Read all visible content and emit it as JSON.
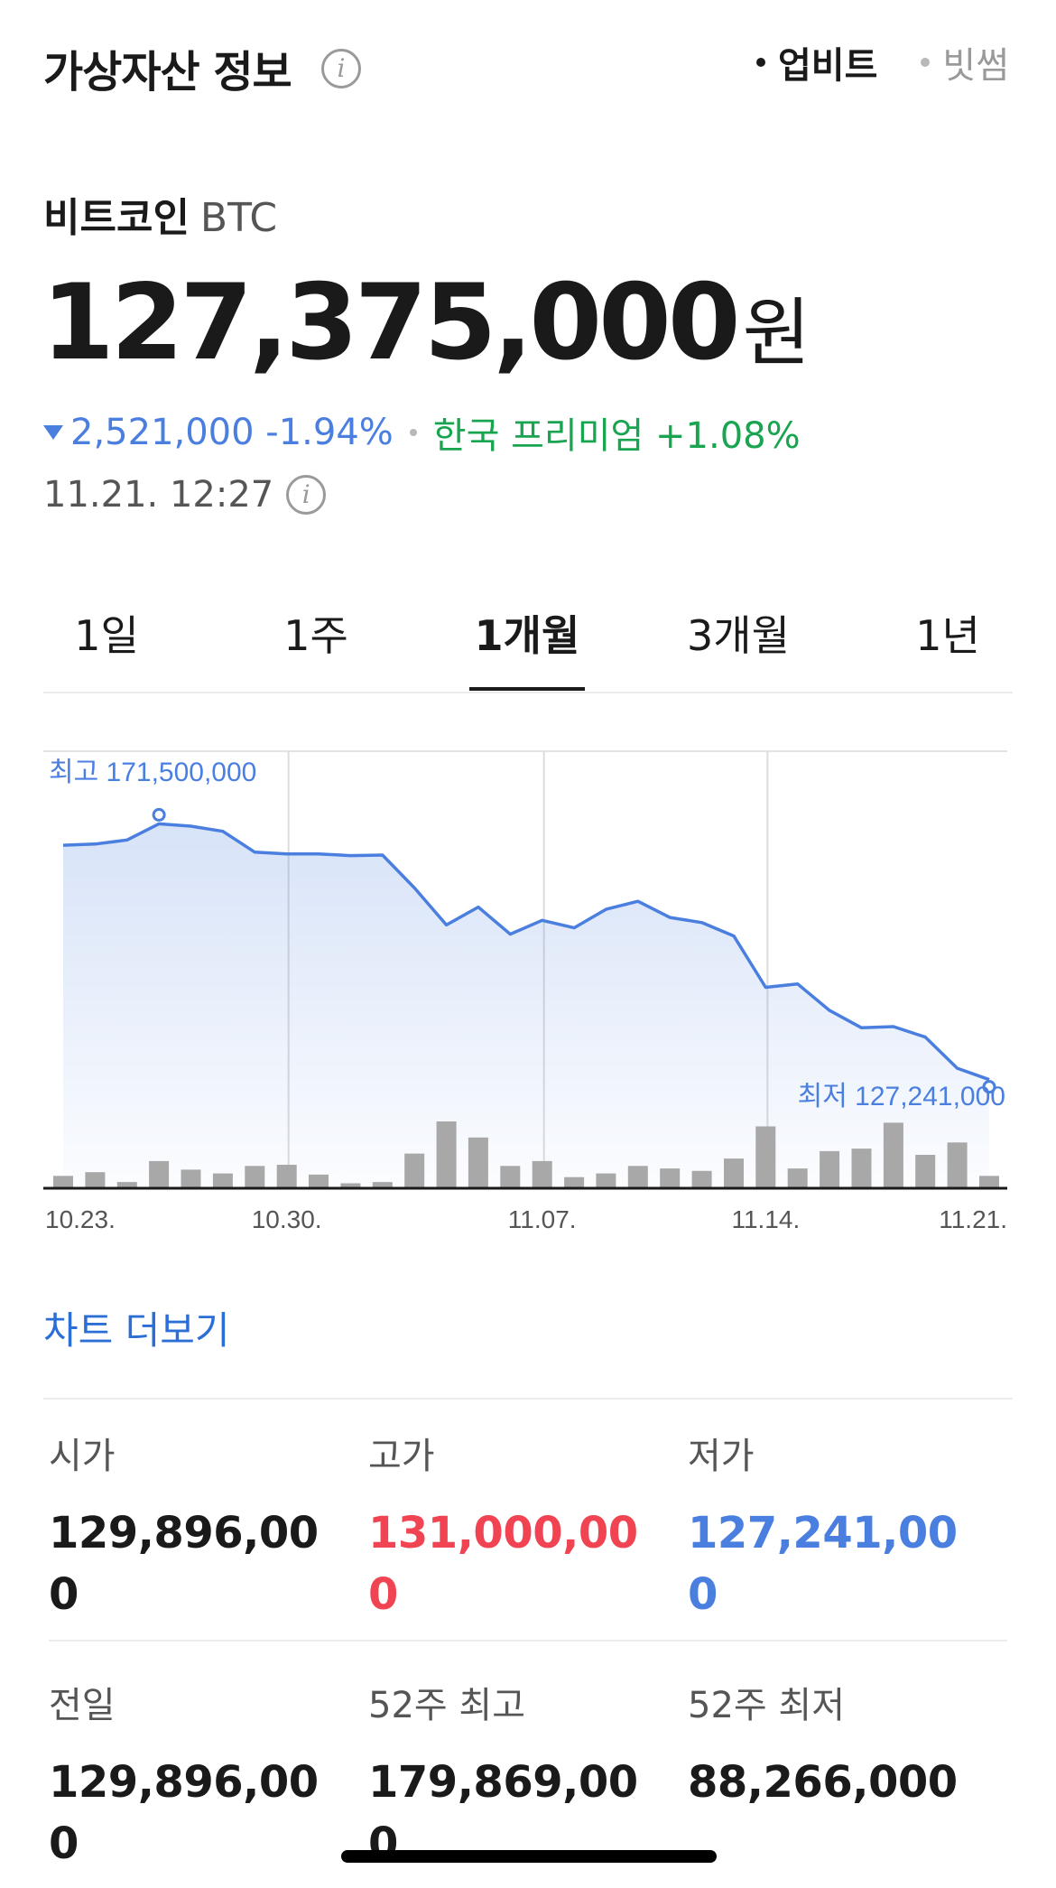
{
  "header": {
    "title": "가상자산 정보",
    "exchanges": [
      {
        "label": "업비트",
        "active": true
      },
      {
        "label": "빗썸",
        "active": false
      }
    ]
  },
  "coin": {
    "name": "비트코인",
    "symbol": "BTC",
    "price": "127,375,000",
    "unit": "원",
    "change": "2,521,000 -1.94%",
    "premium": "한국 프리미엄 +1.08%",
    "timestamp": "11.21. 12:27"
  },
  "periods": {
    "items": [
      "1일",
      "1주",
      "1개월",
      "3개월",
      "1년"
    ],
    "active_index": 2
  },
  "chart_data": {
    "type": "line",
    "x_labels": [
      "10.23.",
      "10.30.",
      "11.07.",
      "11.14.",
      "11.21."
    ],
    "series": [
      {
        "values": [
          167.8,
          168.0,
          168.7,
          171.5,
          171.1,
          170.2,
          166.6,
          166.3,
          166.3,
          166.0,
          166.1,
          160.4,
          154.0,
          157.1,
          152.4,
          154.8,
          153.5,
          156.7,
          158.1,
          155.3,
          154.4,
          152.1,
          143.2,
          143.8,
          139.2,
          136.2,
          136.4,
          134.6,
          129.2,
          127.241
        ]
      }
    ],
    "volume": [
      10,
      13,
      5,
      22,
      15,
      12,
      18,
      19,
      11,
      4,
      5,
      28,
      54,
      41,
      18,
      22,
      9,
      12,
      18,
      16,
      14,
      24,
      50,
      16,
      30,
      32,
      53,
      27,
      37,
      10
    ],
    "high_label": "최고 171,500,000",
    "low_label": "최저 127,241,000",
    "ylim": [
      125,
      175
    ],
    "grid": true,
    "line_color": "#4a7fe0",
    "bar_color": "#a8a8a8"
  },
  "chart_more": "차트 더보기",
  "stats": [
    {
      "label": "시가",
      "value": "129,896,000",
      "color": "default"
    },
    {
      "label": "고가",
      "value": "131,000,000",
      "color": "red"
    },
    {
      "label": "저가",
      "value": "127,241,000",
      "color": "blue"
    },
    {
      "label": "전일",
      "value": "129,896,000",
      "color": "default"
    },
    {
      "label": "52주 최고",
      "value": "179,869,000",
      "color": "default"
    },
    {
      "label": "52주 최저",
      "value": "88,266,000",
      "color": "default"
    }
  ]
}
